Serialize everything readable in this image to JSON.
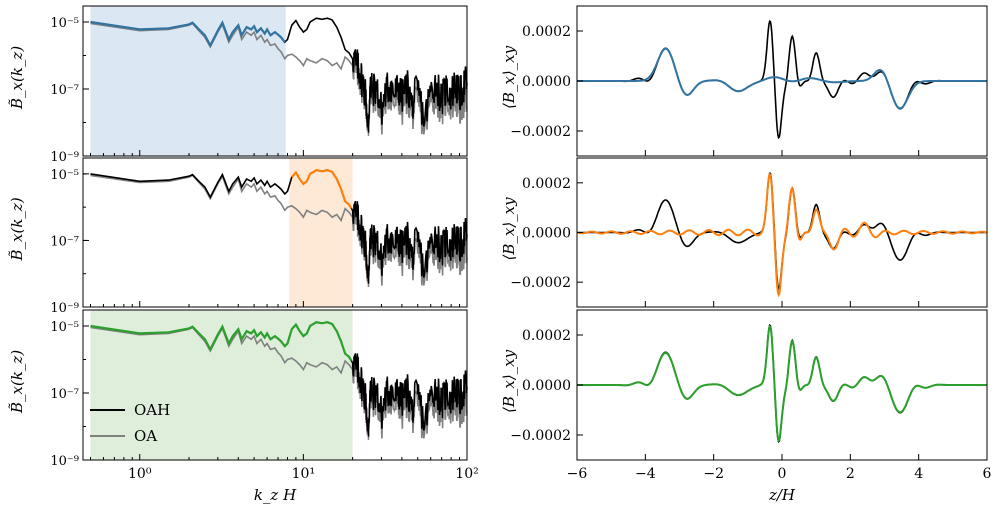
{
  "chart_data": {
    "type": "line",
    "layout": "3 rows x 2 columns",
    "left_column": {
      "xscale": "log",
      "yscale": "log",
      "xlim": [
        0.45,
        100
      ],
      "ylim": [
        1e-09,
        3e-05
      ],
      "xlabel": "k_z H",
      "ylabel": "B̃_x(k_z)",
      "xticks": [
        {
          "value": 1,
          "label": "10⁰"
        },
        {
          "value": 10,
          "label": "10¹"
        },
        {
          "value": 100,
          "label": "10²"
        }
      ],
      "yticks": [
        {
          "value": 1e-09,
          "label": "10⁻⁹"
        },
        {
          "value": 1e-07,
          "label": "10⁻⁷"
        },
        {
          "value": 1e-05,
          "label": "10⁻⁵"
        }
      ],
      "spectrum_k": [
        0.5,
        1.0,
        1.5,
        2.0,
        2.1,
        2.3,
        2.5,
        2.7,
        3.0,
        3.2,
        3.5,
        3.7,
        4.0,
        4.2,
        4.5,
        4.8,
        5.0,
        5.2,
        5.5,
        5.8,
        6.0,
        6.3,
        6.7,
        7.0,
        7.3,
        7.7,
        8.0,
        8.5,
        9.0,
        9.5,
        10.0,
        10.5,
        11.0,
        12.0,
        13.0,
        14.0,
        15.0,
        16.0,
        17.0,
        18.0,
        19.0,
        20.0,
        21.0,
        22.0,
        23.0,
        24.0,
        25.0,
        25.5,
        26.0,
        28.0,
        30.0,
        32.0,
        34.0,
        36.0,
        38.0,
        40.0,
        43.0,
        46.0,
        50.0,
        55.0,
        60.0,
        65.0,
        70.0,
        75.0,
        80.0,
        85.0,
        90.0,
        95.0,
        100.0
      ],
      "series": [
        {
          "name": "OAH",
          "color": "#000000",
          "values": [
            1e-05,
            6e-06,
            6.5e-06,
            8.5e-06,
            9.5e-06,
            6e-06,
            4e-06,
            2e-06,
            5.5e-06,
            9.5e-06,
            3e-06,
            5e-06,
            8e-06,
            4e-06,
            7e-06,
            6e-06,
            7.5e-06,
            5e-06,
            6.5e-06,
            4.5e-06,
            6e-06,
            4e-06,
            5e-06,
            4.2e-06,
            3.5e-06,
            2.5e-06,
            3e-06,
            8e-06,
            1.1e-05,
            7e-06,
            5e-06,
            6e-06,
            1e-05,
            1.3e-05,
            1.2e-05,
            1.3e-05,
            1.15e-05,
            7e-06,
            3.5e-06,
            1.5e-06,
            1.2e-06,
            8e-07,
            5e-07,
            3e-07,
            1.5e-07,
            6e-08,
            5e-09,
            1.2e-07,
            8e-08,
            1e-07,
            2e-08,
            8e-08,
            1.2e-07,
            6e-08,
            1e-07,
            5e-08,
            1.2e-07,
            3e-08,
            9e-08,
            1e-08,
            8e-08,
            1.4e-07,
            4e-08,
            1e-07,
            6e-08,
            1.3e-07,
            5e-08,
            1.1e-07,
            1.5e-07
          ]
        },
        {
          "name": "OA",
          "color": "#808080",
          "values": [
            9e-06,
            5.5e-06,
            6e-06,
            8e-06,
            9e-06,
            5.5e-06,
            3.5e-06,
            1.8e-06,
            5e-06,
            8.5e-06,
            2.5e-06,
            4e-06,
            7e-06,
            3e-06,
            5e-06,
            4e-06,
            5e-06,
            3e-06,
            4e-06,
            2.5e-06,
            3e-06,
            2e-06,
            2.2e-06,
            1.6e-06,
            1.3e-06,
            8e-07,
            1e-06,
            1.1e-06,
            9e-07,
            7e-07,
            5e-07,
            8e-07,
            7e-07,
            6e-07,
            8e-07,
            7e-07,
            5e-07,
            6e-07,
            4e-07,
            9e-07,
            7e-07,
            5e-07,
            3e-07,
            2e-07,
            1e-07,
            5e-08,
            4e-09,
            8e-08,
            5e-08,
            6e-08,
            1e-08,
            5e-08,
            7e-08,
            3e-08,
            6e-08,
            2e-08,
            6e-08,
            1.5e-08,
            4e-08,
            6e-09,
            4e-08,
            6e-08,
            2e-08,
            5e-08,
            3e-08,
            5e-08,
            2e-08,
            4e-08,
            3e-08
          ]
        }
      ],
      "legend": {
        "placement": "lower-left (bottom panel)",
        "entries": [
          "OAH",
          "OA"
        ]
      },
      "panels": [
        {
          "name": "top",
          "highlight_k": [
            0.5,
            7.8
          ],
          "highlight_color": "#dbe8f4",
          "overlay_color": "#3274a1"
        },
        {
          "name": "middle",
          "highlight_k": [
            8.2,
            20.0
          ],
          "highlight_color": "#fde9d6",
          "overlay_color": "#ff7f0e"
        },
        {
          "name": "bottom",
          "highlight_k": [
            0.5,
            20.0
          ],
          "highlight_color": "#deeedb",
          "overlay_color": "#2ca02c"
        }
      ]
    },
    "right_column": {
      "xlim": [
        -6,
        6
      ],
      "ylim": [
        -0.0003,
        0.0003
      ],
      "xlabel": "z/H",
      "ylabel": "⟨B_x⟩_xy",
      "xticks": [
        {
          "value": -6,
          "label": "−6"
        },
        {
          "value": -4,
          "label": "−4"
        },
        {
          "value": -2,
          "label": "−2"
        },
        {
          "value": 0,
          "label": "0"
        },
        {
          "value": 2,
          "label": "2"
        },
        {
          "value": 4,
          "label": "4"
        },
        {
          "value": 6,
          "label": "6"
        }
      ],
      "yticks": [
        {
          "value": 0.0002,
          "label": "0.0002"
        },
        {
          "value": 0,
          "label": "0.0000"
        },
        {
          "value": -0.0002,
          "label": "−0.0002"
        }
      ],
      "full_signal_color": "#000000",
      "panels": [
        {
          "name": "top",
          "filtered_color": "#3274a1",
          "filter": "low k (k_z H < 7.8)"
        },
        {
          "name": "middle",
          "filtered_color": "#ff7f0e",
          "filter": "8.2 < k_z H < 20"
        },
        {
          "name": "bottom",
          "filtered_color": "#2ca02c",
          "filter": "k_z H < 20"
        }
      ]
    }
  }
}
